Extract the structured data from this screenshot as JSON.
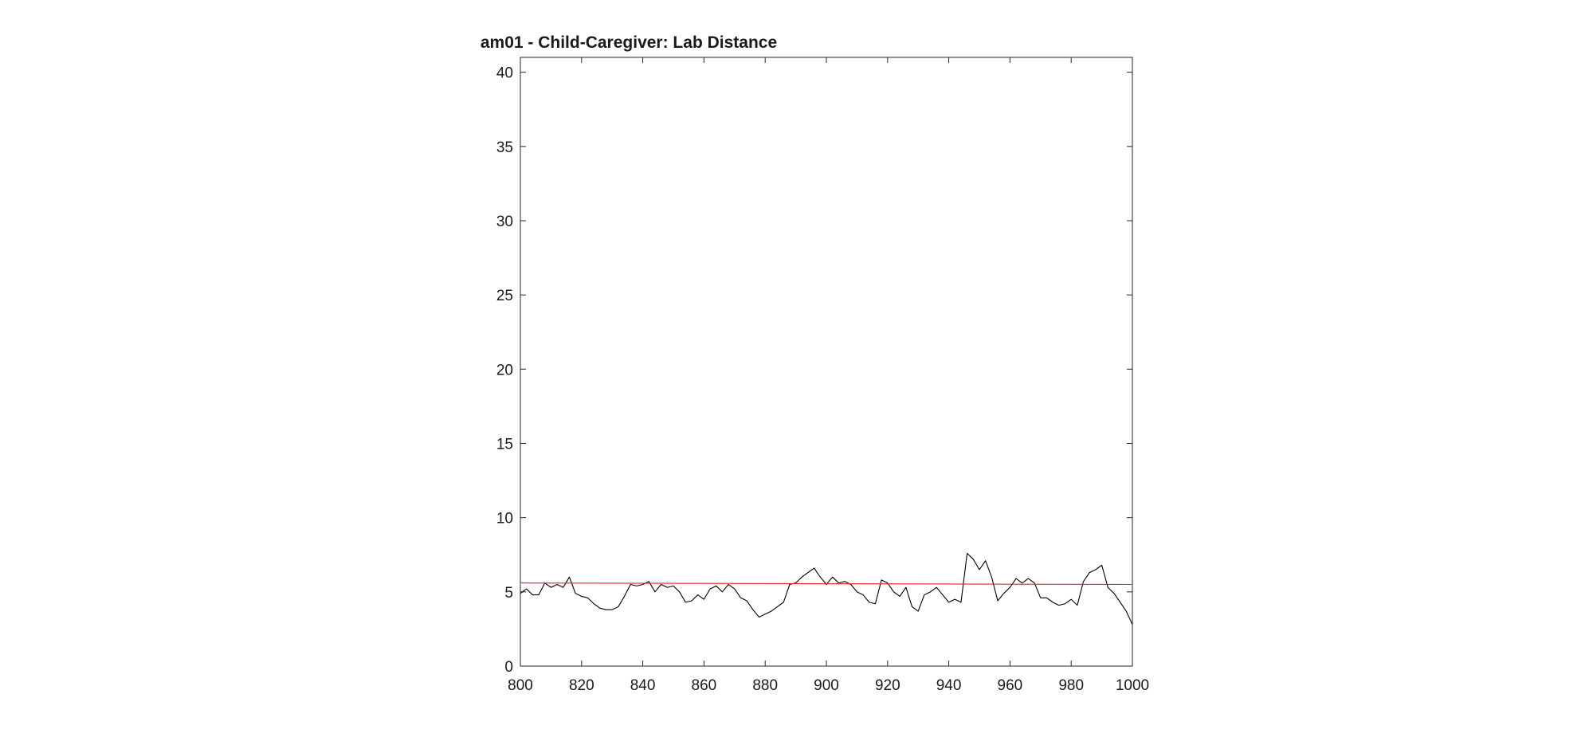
{
  "chart_data": {
    "type": "line",
    "title": "am01 - Child-Caregiver: Lab Distance",
    "xlabel": "",
    "ylabel": "",
    "xlim": [
      800,
      1000
    ],
    "ylim": [
      0,
      41
    ],
    "x_ticks": [
      800,
      820,
      840,
      860,
      880,
      900,
      920,
      940,
      960,
      980,
      1000
    ],
    "y_ticks": [
      0,
      5,
      10,
      15,
      20,
      25,
      30,
      35,
      40
    ],
    "x_tick_labels": [
      "800",
      "820",
      "840",
      "860",
      "880",
      "900",
      "920",
      "940",
      "960",
      "980",
      "1000"
    ],
    "y_tick_labels": [
      "0",
      "5",
      "10",
      "15",
      "20",
      "25",
      "30",
      "35",
      "40"
    ],
    "grid": false,
    "legend": "none",
    "series": [
      {
        "color": "#000000",
        "x": [
          800,
          802,
          804,
          806,
          808,
          810,
          812,
          814,
          816,
          818,
          820,
          822,
          824,
          826,
          828,
          830,
          832,
          834,
          836,
          838,
          840,
          842,
          844,
          846,
          848,
          850,
          852,
          854,
          856,
          858,
          860,
          862,
          864,
          866,
          868,
          870,
          872,
          874,
          876,
          878,
          880,
          882,
          884,
          886,
          888,
          890,
          892,
          894,
          896,
          898,
          900,
          902,
          904,
          906,
          908,
          910,
          912,
          914,
          916,
          918,
          920,
          922,
          924,
          926,
          928,
          930,
          932,
          934,
          936,
          938,
          940,
          942,
          944,
          946,
          948,
          950,
          952,
          954,
          956,
          958,
          960,
          962,
          964,
          966,
          968,
          970,
          972,
          974,
          976,
          978,
          980,
          982,
          984,
          986,
          988,
          990,
          992,
          994,
          996,
          998,
          1000
        ],
        "y": [
          4.9,
          5.2,
          4.8,
          4.8,
          5.6,
          5.3,
          5.5,
          5.3,
          6.0,
          4.9,
          4.7,
          4.6,
          4.2,
          3.9,
          3.8,
          3.8,
          4.0,
          4.7,
          5.5,
          5.4,
          5.5,
          5.7,
          5.0,
          5.5,
          5.3,
          5.4,
          5.0,
          4.3,
          4.4,
          4.8,
          4.5,
          5.2,
          5.4,
          5.0,
          5.5,
          5.2,
          4.6,
          4.4,
          3.8,
          3.3,
          3.5,
          3.7,
          4.0,
          4.3,
          5.5,
          5.6,
          6.0,
          6.3,
          6.6,
          6.0,
          5.5,
          6.0,
          5.6,
          5.7,
          5.5,
          5.0,
          4.8,
          4.3,
          4.2,
          5.8,
          5.6,
          5.0,
          4.7,
          5.3,
          4.0,
          3.7,
          4.8,
          5.0,
          5.3,
          4.8,
          4.3,
          4.5,
          4.3,
          7.6,
          7.2,
          6.5,
          7.1,
          6.0,
          4.4,
          4.9,
          5.3,
          5.9,
          5.6,
          5.9,
          5.6,
          4.6,
          4.6,
          4.3,
          4.1,
          4.2,
          4.5,
          4.1,
          5.7,
          6.3,
          6.5,
          6.8,
          5.3,
          4.9,
          4.3,
          3.7,
          2.8
        ]
      },
      {
        "color": "#e8202a",
        "x": [
          800,
          1000
        ],
        "y": [
          5.6,
          5.5
        ]
      }
    ]
  }
}
